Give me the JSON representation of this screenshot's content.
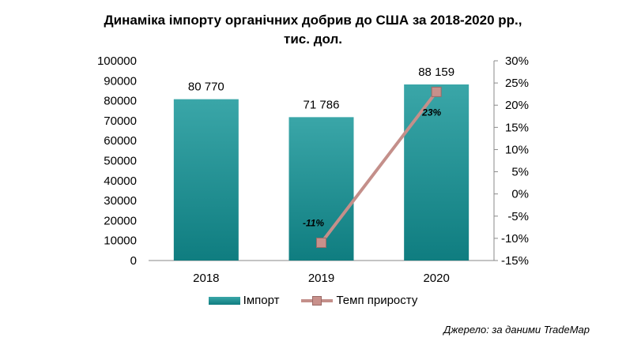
{
  "title_line1": "Динаміка імпорту органічних добрив до США за 2018-2020 рр.,",
  "title_line2": "тис. дол.",
  "source": "Джерело: за даними TradeMap",
  "colors": {
    "bar_top": "#3aa6a8",
    "bar_bottom": "#0f7d80",
    "line": "#c48f8a",
    "marker": "#c8908b"
  },
  "chart_data": {
    "type": "bar",
    "categories": [
      "2018",
      "2019",
      "2020"
    ],
    "series": [
      {
        "name": "Імпорт",
        "type": "bar",
        "axis": "left",
        "values": [
          80770,
          71786,
          88159
        ],
        "data_labels": [
          "80 770",
          "71 786",
          "88 159"
        ]
      },
      {
        "name": "Темп приросту",
        "type": "line",
        "axis": "right",
        "x": [
          "2019",
          "2020"
        ],
        "values": [
          -11,
          23
        ],
        "data_labels": [
          "-11%",
          "23%"
        ]
      }
    ],
    "y_left": {
      "min": 0,
      "max": 100000,
      "step": 10000,
      "tick_labels": [
        "0",
        "10000",
        "20000",
        "30000",
        "40000",
        "50000",
        "60000",
        "70000",
        "80000",
        "90000",
        "100000"
      ]
    },
    "y_right": {
      "min": -15,
      "max": 30,
      "step": 5,
      "tick_labels": [
        "-15%",
        "-10%",
        "-5%",
        "0%",
        "5%",
        "10%",
        "15%",
        "20%",
        "25%",
        "30%"
      ]
    },
    "grid": false,
    "legend_position": "bottom"
  }
}
